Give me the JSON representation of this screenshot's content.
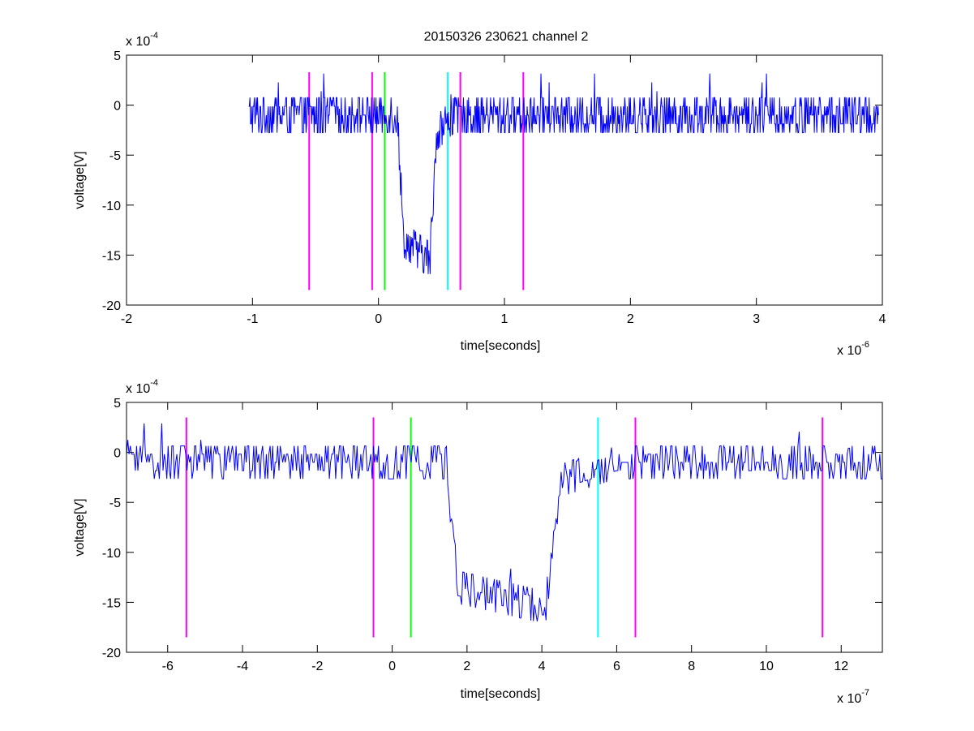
{
  "figure": {
    "title": "20150326 230621 channel 2"
  },
  "colors": {
    "trace": "#0000ff",
    "magenta": "#ff00ff",
    "green": "#00ff00",
    "cyan": "#00ffff",
    "axis": "#000000",
    "background": "#ffffff"
  },
  "chart_data": [
    {
      "type": "line",
      "title": "20150326 230621 channel 2",
      "xlabel": "time[seconds]",
      "ylabel": "voltage[V]",
      "x_multiplier": "x 10",
      "x_exponent": "-6",
      "y_multiplier": "x 10",
      "y_exponent": "-4",
      "xlim": [
        -2,
        4
      ],
      "ylim": [
        -20,
        5
      ],
      "xticks": [
        -2,
        -1,
        0,
        1,
        2,
        3,
        4
      ],
      "yticks": [
        -20,
        -15,
        -10,
        -5,
        0,
        5
      ],
      "xtick_labels": [
        "-2",
        "-1",
        "0",
        "1",
        "2",
        "3",
        "4"
      ],
      "ytick_labels": [
        "-20",
        "-15",
        "-10",
        "-5",
        "0",
        "5"
      ],
      "grid": false,
      "series": [
        {
          "color": "#0000ff",
          "x_range": [
            -1.03,
            3.97
          ],
          "baseline": -1.0,
          "noise": 1.6,
          "step_down_start": 0.15,
          "step_down_end": 0.2,
          "low_level_start": -13.5,
          "low_level_end": -15.5,
          "step_up_start": 0.41,
          "step_up_end": 0.46,
          "recovery_level": -2.8,
          "recovery_end": 0.6
        }
      ],
      "vertical_markers": [
        {
          "x": -0.55,
          "color": "#ff00ff",
          "y_range": [
            -18.5,
            3.3
          ]
        },
        {
          "x": -0.05,
          "color": "#ff00ff",
          "y_range": [
            -18.5,
            3.3
          ]
        },
        {
          "x": 0.05,
          "color": "#00ff00",
          "y_range": [
            -18.5,
            3.3
          ]
        },
        {
          "x": 0.55,
          "color": "#00ffff",
          "y_range": [
            -18.5,
            3.3
          ]
        },
        {
          "x": 0.65,
          "color": "#ff00ff",
          "y_range": [
            -18.5,
            3.3
          ]
        },
        {
          "x": 1.15,
          "color": "#ff00ff",
          "y_range": [
            -18.5,
            3.3
          ]
        }
      ]
    },
    {
      "type": "line",
      "xlabel": "time[seconds]",
      "ylabel": "voltage[V]",
      "x_multiplier": "x 10",
      "x_exponent": "-7",
      "y_multiplier": "x 10",
      "y_exponent": "-4",
      "xlim": [
        -7.1,
        13.1
      ],
      "ylim": [
        -20,
        5
      ],
      "xticks": [
        -6,
        -4,
        -2,
        0,
        2,
        4,
        6,
        8,
        10,
        12
      ],
      "yticks": [
        -20,
        -15,
        -10,
        -5,
        0,
        5
      ],
      "xtick_labels": [
        "-6",
        "-4",
        "-2",
        "0",
        "2",
        "4",
        "6",
        "8",
        "10",
        "12"
      ],
      "ytick_labels": [
        "-20",
        "-15",
        "-10",
        "-5",
        "0",
        "5"
      ],
      "grid": false,
      "series": [
        {
          "color": "#0000ff",
          "x_range": [
            -7.1,
            13.1
          ],
          "baseline": -1.0,
          "noise": 1.5,
          "step_down_start": 1.45,
          "step_down_end": 1.75,
          "low_level_start": -13.5,
          "low_level_end": -15.5,
          "step_up_start": 4.1,
          "step_up_end": 4.5,
          "recovery_level": -2.8,
          "recovery_end": 6.0
        }
      ],
      "vertical_markers": [
        {
          "x": -5.5,
          "color": "#ff00ff",
          "y_range": [
            -18.5,
            3.5
          ]
        },
        {
          "x": -0.5,
          "color": "#ff00ff",
          "y_range": [
            -18.5,
            3.5
          ]
        },
        {
          "x": 0.5,
          "color": "#00ff00",
          "y_range": [
            -18.5,
            3.5
          ]
        },
        {
          "x": 5.5,
          "color": "#00ffff",
          "y_range": [
            -18.5,
            3.5
          ]
        },
        {
          "x": 6.5,
          "color": "#ff00ff",
          "y_range": [
            -18.5,
            3.5
          ]
        },
        {
          "x": 11.5,
          "color": "#ff00ff",
          "y_range": [
            -18.5,
            3.5
          ]
        }
      ]
    }
  ]
}
